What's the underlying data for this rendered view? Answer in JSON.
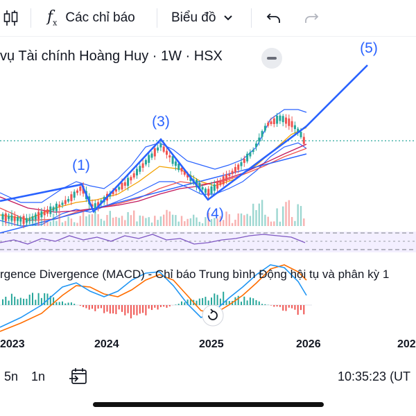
{
  "toolbar": {
    "indicators_label": "Các chỉ báo",
    "chart_type_label": "Biểu đồ"
  },
  "chart": {
    "title": "vụ Tài chính Hoàng Huy · 1W · HSX",
    "wave_labels": [
      "(1)",
      "(3)",
      "(4)",
      "(5)"
    ],
    "macd_title": "rgence Divergence (MACD) - Chỉ báo Trung bình Động hội tụ và phân kỳ 1",
    "x_axis": [
      "2023",
      "2024",
      "2025",
      "2026",
      "202"
    ],
    "colors": {
      "up": "#26a69a",
      "down": "#ef5350",
      "wave_line": "#2962ff",
      "macd_line": "#2196f3",
      "signal_line": "#ff6d00",
      "rsi": "#7e57c2"
    }
  },
  "bottom": {
    "timeframes": [
      "5n",
      "1n"
    ],
    "clock": "10:35:23 (UT"
  },
  "icons": [
    "candlestick-icon",
    "fx-icon",
    "chevron-down-icon",
    "undo-icon",
    "redo-icon",
    "reset-icon",
    "goto-date-icon"
  ]
}
